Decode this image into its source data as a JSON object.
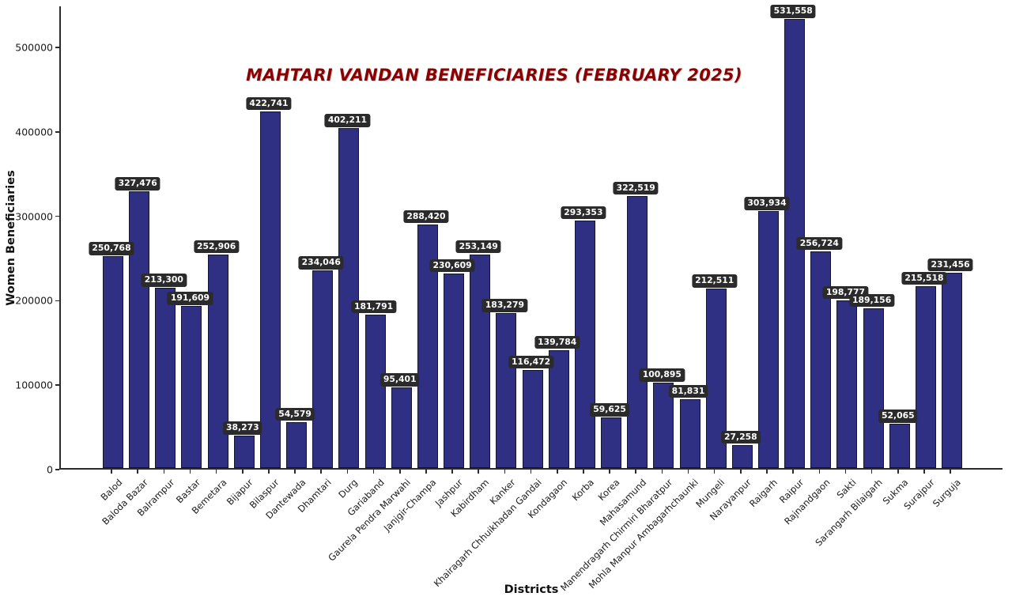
{
  "chart_data": {
    "type": "bar",
    "title": "MAHTARI VANDAN BENEFICIARIES (FEBRUARY 2025)",
    "xlabel": "Districts",
    "ylabel": "Women Beneficiaries",
    "ylim": [
      0,
      545000
    ],
    "yticks": [
      0,
      100000,
      200000,
      300000,
      400000,
      500000
    ],
    "ytick_labels": [
      "0",
      "100000",
      "200000",
      "300000",
      "400000",
      "500000"
    ],
    "grid": false,
    "legend": null,
    "bar_color": "#2f2f84",
    "bar_edge_color": "#15152a",
    "value_label_bg": "#2b2b2b",
    "value_label_color": "#ffffff",
    "title_color": "#8b0000",
    "categories": [
      "Balod",
      "Baloda Bazar",
      "Balrampur",
      "Bastar",
      "Bemetara",
      "Bijapur",
      "Bilaspur",
      "Dantewada",
      "Dhamtari",
      "Durg",
      "Gariaband",
      "Gaurela Pendra Marwahi",
      "Janjgir-Champa",
      "Jashpur",
      "Kabirdham",
      "Kanker",
      "Khairagarh Chhuikhadan Gandai",
      "Kondagaon",
      "Korba",
      "Korea",
      "Mahasamund",
      "Manendragarh Chirmiri Bharatpur",
      "Mohla Manpur Ambagarhchaunki",
      "Mungeli",
      "Narayanpur",
      "Raigarh",
      "Raipur",
      "Rajnandgaon",
      "Sakti",
      "Sarangarh Bilaigarh",
      "Sukma",
      "Surajpur",
      "Surguja"
    ],
    "values": [
      250768,
      327476,
      213300,
      191609,
      252906,
      38273,
      422741,
      54579,
      234046,
      402211,
      181791,
      95401,
      288420,
      230609,
      253149,
      183279,
      116472,
      139784,
      293353,
      59625,
      322519,
      100895,
      81831,
      212511,
      27258,
      303934,
      531558,
      256724,
      198777,
      189156,
      52065,
      215518,
      231456
    ],
    "value_labels": [
      "250,768",
      "327,476",
      "213,300",
      "191,609",
      "252,906",
      "38,273",
      "422,741",
      "54,579",
      "234,046",
      "402,211",
      "181,791",
      "95,401",
      "288,420",
      "230,609",
      "253,149",
      "183,279",
      "116,472",
      "139,784",
      "293,353",
      "59,625",
      "322,519",
      "100,895",
      "81,831",
      "212,511",
      "27,258",
      "303,934",
      "531,558",
      "256,724",
      "198,777",
      "189,156",
      "52,065",
      "215,518",
      "231,456"
    ]
  }
}
